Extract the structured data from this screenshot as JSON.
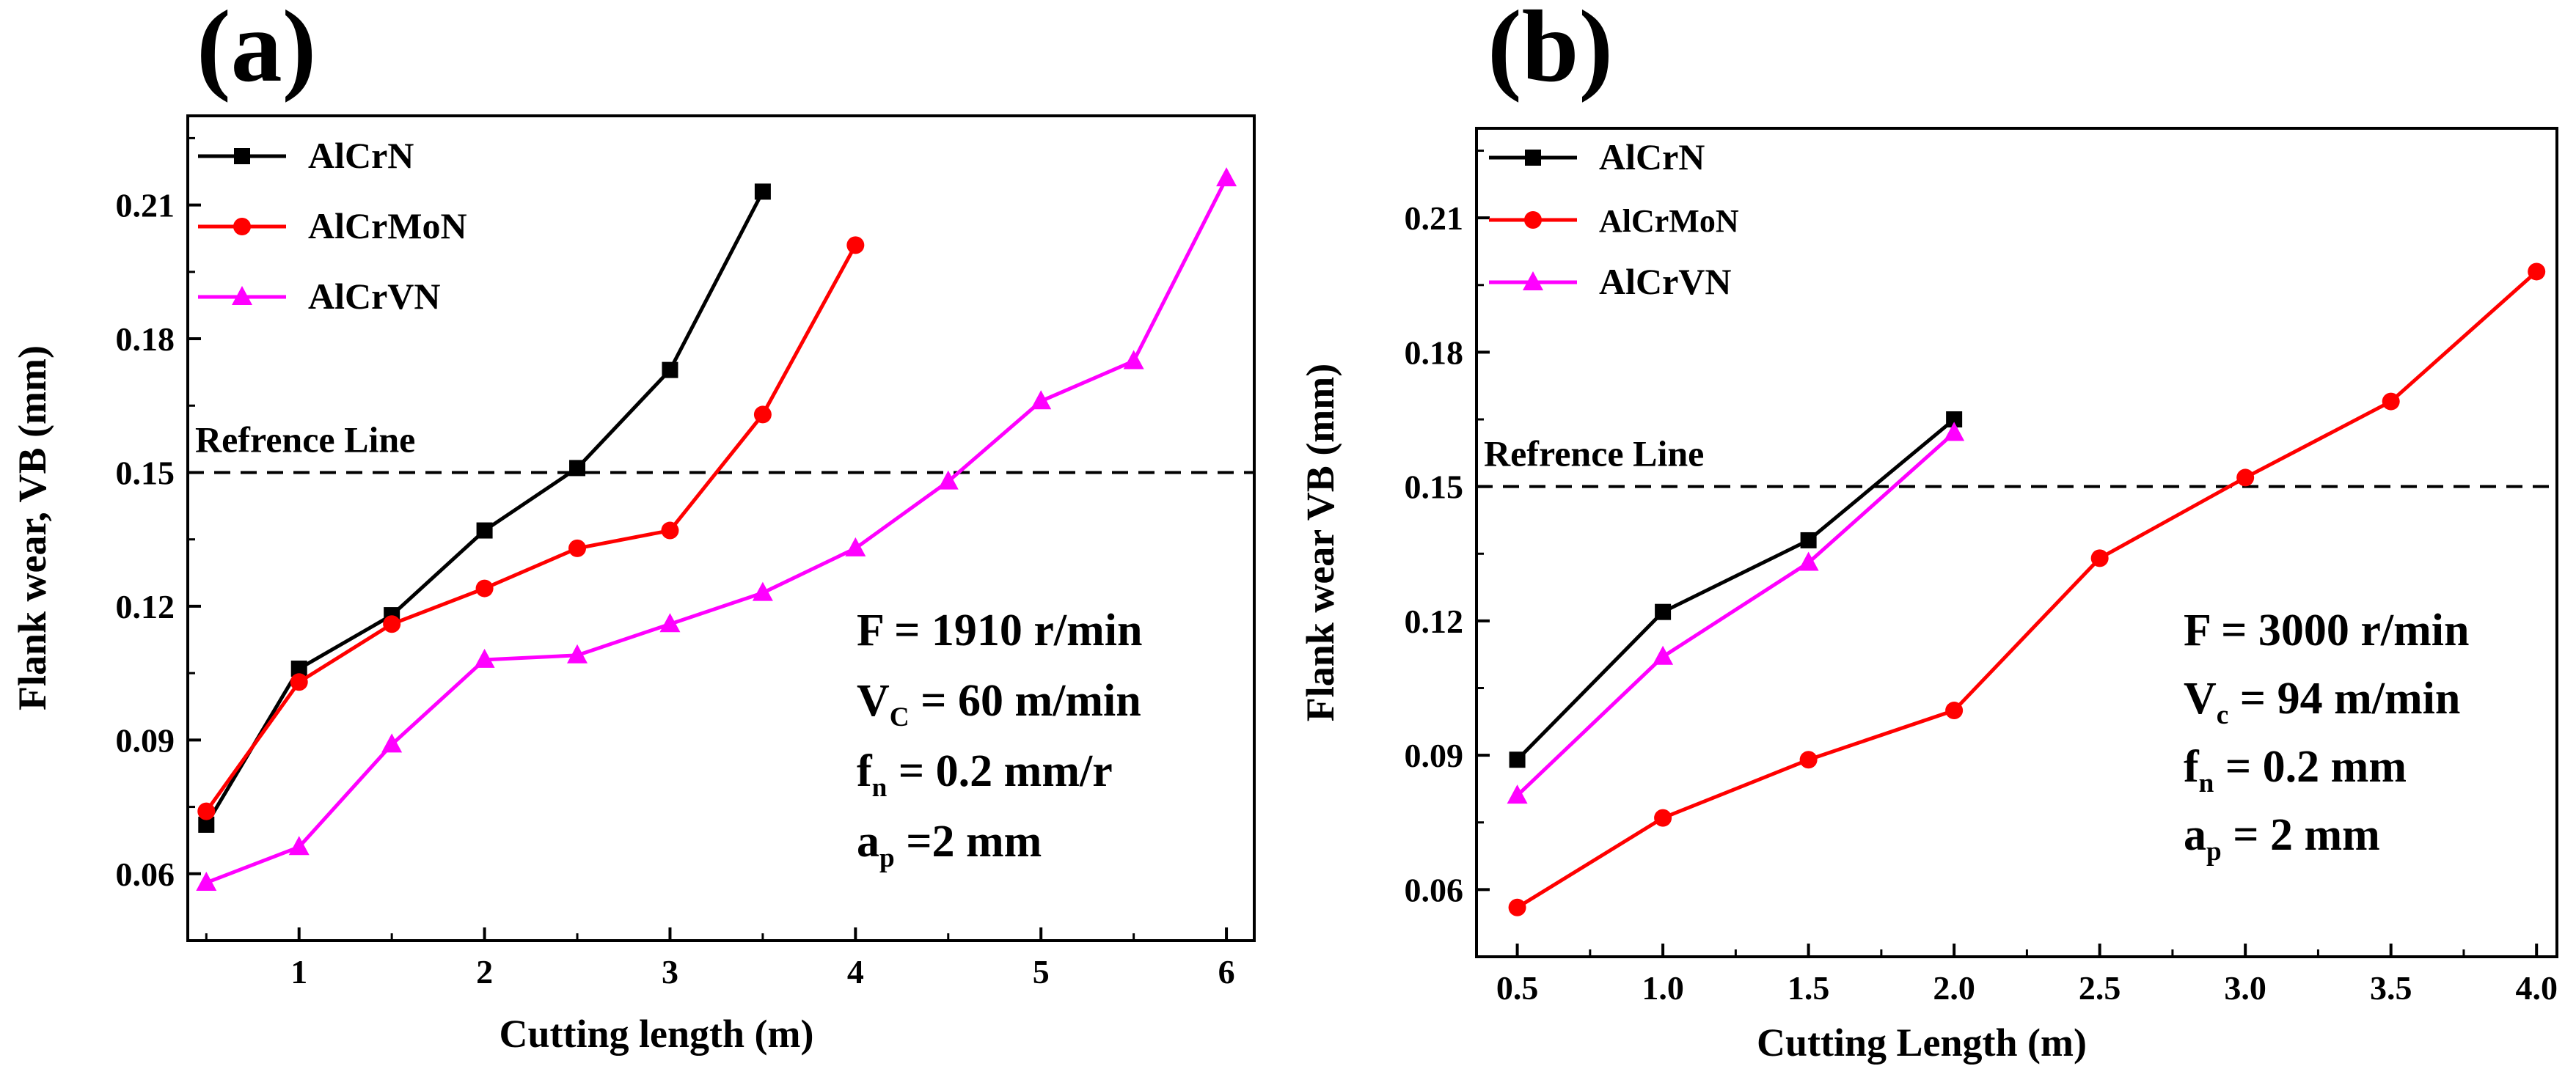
{
  "chart_data": [
    {
      "type": "line",
      "panel_label": "(a)",
      "xlabel": "Cutting length (m)",
      "ylabel": "Flank wear, VB (mm)",
      "xlim": [
        0.4,
        6.15
      ],
      "ylim": [
        0.045,
        0.23
      ],
      "xticks": [
        "1",
        "2",
        "3",
        "4",
        "5",
        "6"
      ],
      "yticks": [
        "0.06",
        "0.09",
        "0.12",
        "0.15",
        "0.18",
        "0.21"
      ],
      "reference_line": {
        "label": "Refrence Line",
        "y": 0.15
      },
      "series": [
        {
          "name": "AlCrN",
          "color": "#000000",
          "marker": "square",
          "x": [
            0.5,
            1.0,
            1.5,
            2.0,
            2.5,
            3.0,
            3.5
          ],
          "y": [
            0.071,
            0.106,
            0.118,
            0.137,
            0.151,
            0.173,
            0.213
          ]
        },
        {
          "name": "AlCrMoN",
          "color": "#ff0000",
          "marker": "circle",
          "x": [
            0.5,
            1.0,
            1.5,
            2.0,
            2.5,
            3.0,
            3.5,
            4.0
          ],
          "y": [
            0.074,
            0.103,
            0.116,
            0.124,
            0.133,
            0.137,
            0.163,
            0.201
          ]
        },
        {
          "name": "AlCrVN",
          "color": "#ff00ff",
          "marker": "triangle",
          "x": [
            0.5,
            1.0,
            1.5,
            2.0,
            2.5,
            3.0,
            3.5,
            4.0,
            4.5,
            5.0,
            5.5,
            6.0
          ],
          "y": [
            0.058,
            0.066,
            0.089,
            0.108,
            0.109,
            0.116,
            0.123,
            0.133,
            0.148,
            0.166,
            0.175,
            0.216
          ]
        }
      ],
      "annotations": [
        {
          "id": "F",
          "lead": "F",
          "sub": "",
          "tail": "  = 1910 r/min"
        },
        {
          "id": "Vc",
          "lead": "V",
          "sub": "C",
          "tail": " = 60 m/min"
        },
        {
          "id": "fn",
          "lead": "f",
          "sub": "n",
          "tail": " = 0.2 mm/r"
        },
        {
          "id": "ap",
          "lead": "a",
          "sub": "p",
          "tail": " =2 mm"
        }
      ]
    },
    {
      "type": "line",
      "panel_label": "(b)",
      "xlabel": "Cutting Length (m)",
      "ylabel": "Flank wear  VB (mm)",
      "xlim": [
        0.36,
        4.07
      ],
      "ylim": [
        0.045,
        0.23
      ],
      "xticks": [
        "0.5",
        "1.0",
        "1.5",
        "2.0",
        "2.5",
        "3.0",
        "3.5",
        "4.0"
      ],
      "yticks": [
        "0.06",
        "0.09",
        "0.12",
        "0.15",
        "0.18",
        "0.21"
      ],
      "reference_line": {
        "label": "Refrence Line",
        "y": 0.15
      },
      "series": [
        {
          "name": "AlCrN",
          "color": "#000000",
          "marker": "square",
          "x": [
            0.5,
            1.0,
            1.5,
            2.0
          ],
          "y": [
            0.089,
            0.122,
            0.138,
            0.165
          ]
        },
        {
          "name": "AlCrMoN",
          "color": "#ff0000",
          "marker": "circle",
          "x": [
            0.5,
            1.0,
            1.5,
            2.0,
            2.5,
            3.0,
            3.5,
            4.0
          ],
          "y": [
            0.056,
            0.076,
            0.089,
            0.1,
            0.134,
            0.152,
            0.169,
            0.198
          ]
        },
        {
          "name": "AlCrVN",
          "color": "#ff00ff",
          "marker": "triangle",
          "x": [
            0.5,
            1.0,
            1.5,
            2.0
          ],
          "y": [
            0.081,
            0.112,
            0.133,
            0.162
          ]
        }
      ],
      "annotations": [
        {
          "id": "F",
          "lead": "F",
          "sub": "",
          "tail": "  =  3000 r/min"
        },
        {
          "id": "Vc",
          "lead": "V",
          "sub": "c",
          "tail": " = 94 m/min"
        },
        {
          "id": "fn",
          "lead": "f",
          "sub": "n",
          "tail": " =   0.2 mm"
        },
        {
          "id": "ap",
          "lead": "a",
          "sub": "p",
          "tail": " =  2 mm"
        }
      ]
    }
  ]
}
